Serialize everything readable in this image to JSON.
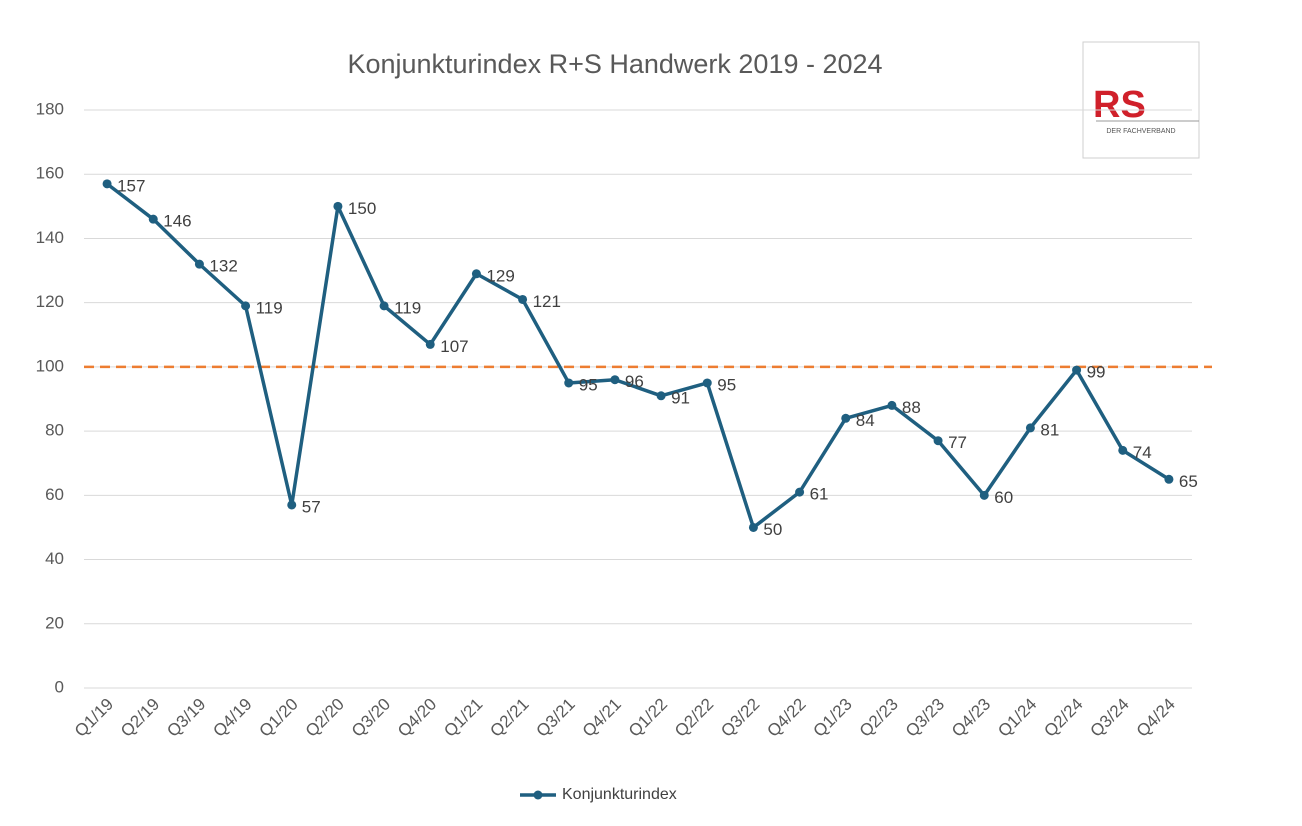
{
  "chart_data": {
    "type": "line",
    "title": "Konjunkturindex R+S Handwerk 2019 - 2024",
    "categories": [
      "Q1/19",
      "Q2/19",
      "Q3/19",
      "Q4/19",
      "Q1/20",
      "Q2/20",
      "Q3/20",
      "Q4/20",
      "Q1/21",
      "Q2/21",
      "Q3/21",
      "Q4/21",
      "Q1/22",
      "Q2/22",
      "Q3/22",
      "Q4/22",
      "Q1/23",
      "Q2/23",
      "Q3/23",
      "Q4/23",
      "Q1/24",
      "Q2/24",
      "Q3/24",
      "Q4/24"
    ],
    "series": [
      {
        "name": "Konjunkturindex",
        "color": "#1f5f80",
        "values": [
          157,
          146,
          132,
          119,
          57,
          150,
          119,
          107,
          129,
          121,
          95,
          96,
          91,
          95,
          50,
          61,
          84,
          88,
          77,
          60,
          81,
          99,
          74,
          65
        ]
      }
    ],
    "ylim": [
      0,
      180
    ],
    "yticks": [
      0,
      20,
      40,
      60,
      80,
      100,
      120,
      140,
      160,
      180
    ],
    "grid": true,
    "reference_line": {
      "value": 100,
      "color": "#ed7d31"
    },
    "legend": "bottom"
  },
  "logo": {
    "text": "RS",
    "subtitle": "DER FACHVERBAND"
  }
}
